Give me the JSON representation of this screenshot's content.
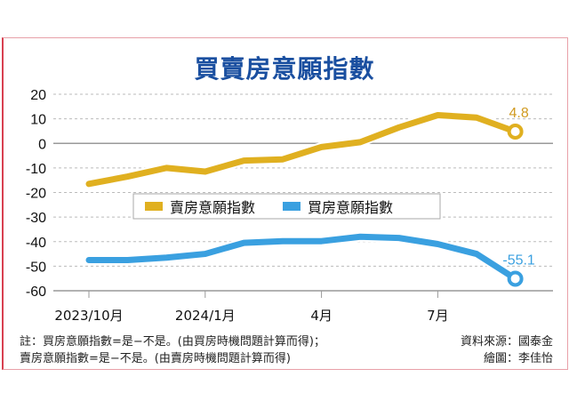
{
  "chart_data": {
    "type": "line",
    "title": "買賣房意願指數",
    "x": [
      "2023/10",
      "2023/11",
      "2023/12",
      "2024/1",
      "2024/2",
      "2024/3",
      "2024/4",
      "2024/5",
      "2024/6",
      "2024/7",
      "2024/8",
      "2024/9"
    ],
    "xtick_labels": [
      "2023/10月",
      "2024/1月",
      "4月",
      "7月"
    ],
    "yticks": [
      20,
      10,
      0,
      -10,
      -20,
      -30,
      -40,
      -50,
      -60
    ],
    "ylim": [
      -60,
      20
    ],
    "grid": "horizontal dashed",
    "legend_placement": "center",
    "series": [
      {
        "name": "賣房意願指數",
        "color": "#e0b020",
        "values": [
          -16.5,
          -13.5,
          -10,
          -11.5,
          -7,
          -6.5,
          -1.5,
          0.5,
          6.5,
          11.5,
          10.5,
          4.8
        ],
        "end_label": "4.8"
      },
      {
        "name": "買房意願指數",
        "color": "#3aa0e0",
        "values": [
          -47.5,
          -47.5,
          -46.5,
          -45,
          -40.5,
          -39.8,
          -39.8,
          -38,
          -38.5,
          -41,
          -45,
          -55.1
        ],
        "end_label": "-55.1"
      }
    ]
  },
  "notes": {
    "line1": "註：買房意願指數=是−不是。(由買房時機問題計算而得)；",
    "line2": "賣房意願指數=是−不是。(由賣房時機問題計算而得)",
    "source": "資料來源：國泰金",
    "artist": "繪圖：李佳怡"
  }
}
